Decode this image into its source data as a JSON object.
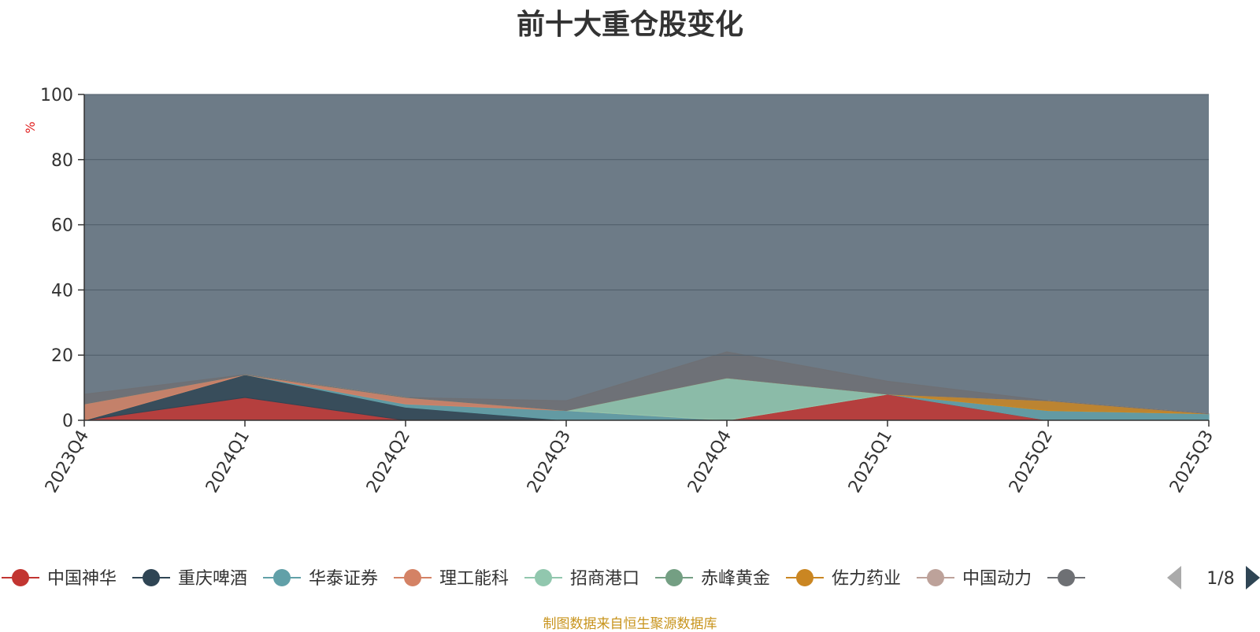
{
  "title": "前十大重仓股变化",
  "source_note": "制图数据来自恒生聚源数据库",
  "legend_pager": {
    "text": "1/8",
    "prev_icon": "triangle-left-icon",
    "next_icon": "triangle-right-icon"
  },
  "colors": {
    "background_area": "#6d7b87",
    "upper_band": "#d8dce3",
    "gridline": "#4f5d69"
  },
  "chart_data": {
    "type": "area",
    "stacked": true,
    "title": "前十大重仓股变化",
    "ylabel": "%",
    "ylim": [
      0,
      100
    ],
    "yticks": [
      0,
      20,
      40,
      60,
      80,
      100
    ],
    "grid": true,
    "legend_position": "bottom",
    "categories": [
      "2023Q4",
      "2024Q1",
      "2024Q2",
      "2024Q3",
      "2024Q4",
      "2025Q1",
      "2025Q2",
      "2025Q3"
    ],
    "series": [
      {
        "name": "中国神华",
        "color": "#c23531",
        "values": [
          0,
          7,
          0,
          0,
          0,
          8,
          0,
          0
        ]
      },
      {
        "name": "重庆啤酒",
        "color": "#2f4554",
        "values": [
          0,
          7,
          4,
          0,
          0,
          0,
          0,
          0
        ]
      },
      {
        "name": "华泰证券",
        "color": "#61a0a8",
        "values": [
          0,
          0,
          1,
          3,
          0,
          0,
          3,
          2
        ]
      },
      {
        "name": "理工能科",
        "color": "#d48265",
        "values": [
          5,
          0,
          2,
          0,
          0,
          0,
          0,
          0
        ]
      },
      {
        "name": "招商港口",
        "color": "#91c7ae",
        "values": [
          0,
          0,
          0,
          0,
          13,
          0,
          0,
          0
        ]
      },
      {
        "name": "赤峰黄金",
        "color": "#749f83",
        "values": [
          0,
          0,
          0,
          0,
          0,
          0,
          0,
          0
        ]
      },
      {
        "name": "佐力药业",
        "color": "#ca8622",
        "values": [
          0,
          0,
          0,
          0,
          0,
          0,
          3,
          0
        ]
      },
      {
        "name": "中国动力",
        "color": "#bda29a",
        "values": [
          0,
          0,
          0,
          0,
          0,
          0,
          0,
          0
        ]
      },
      {
        "name": "",
        "color": "#6e7074",
        "values": [
          3,
          0,
          0,
          3,
          8,
          4,
          0,
          0
        ]
      }
    ]
  }
}
